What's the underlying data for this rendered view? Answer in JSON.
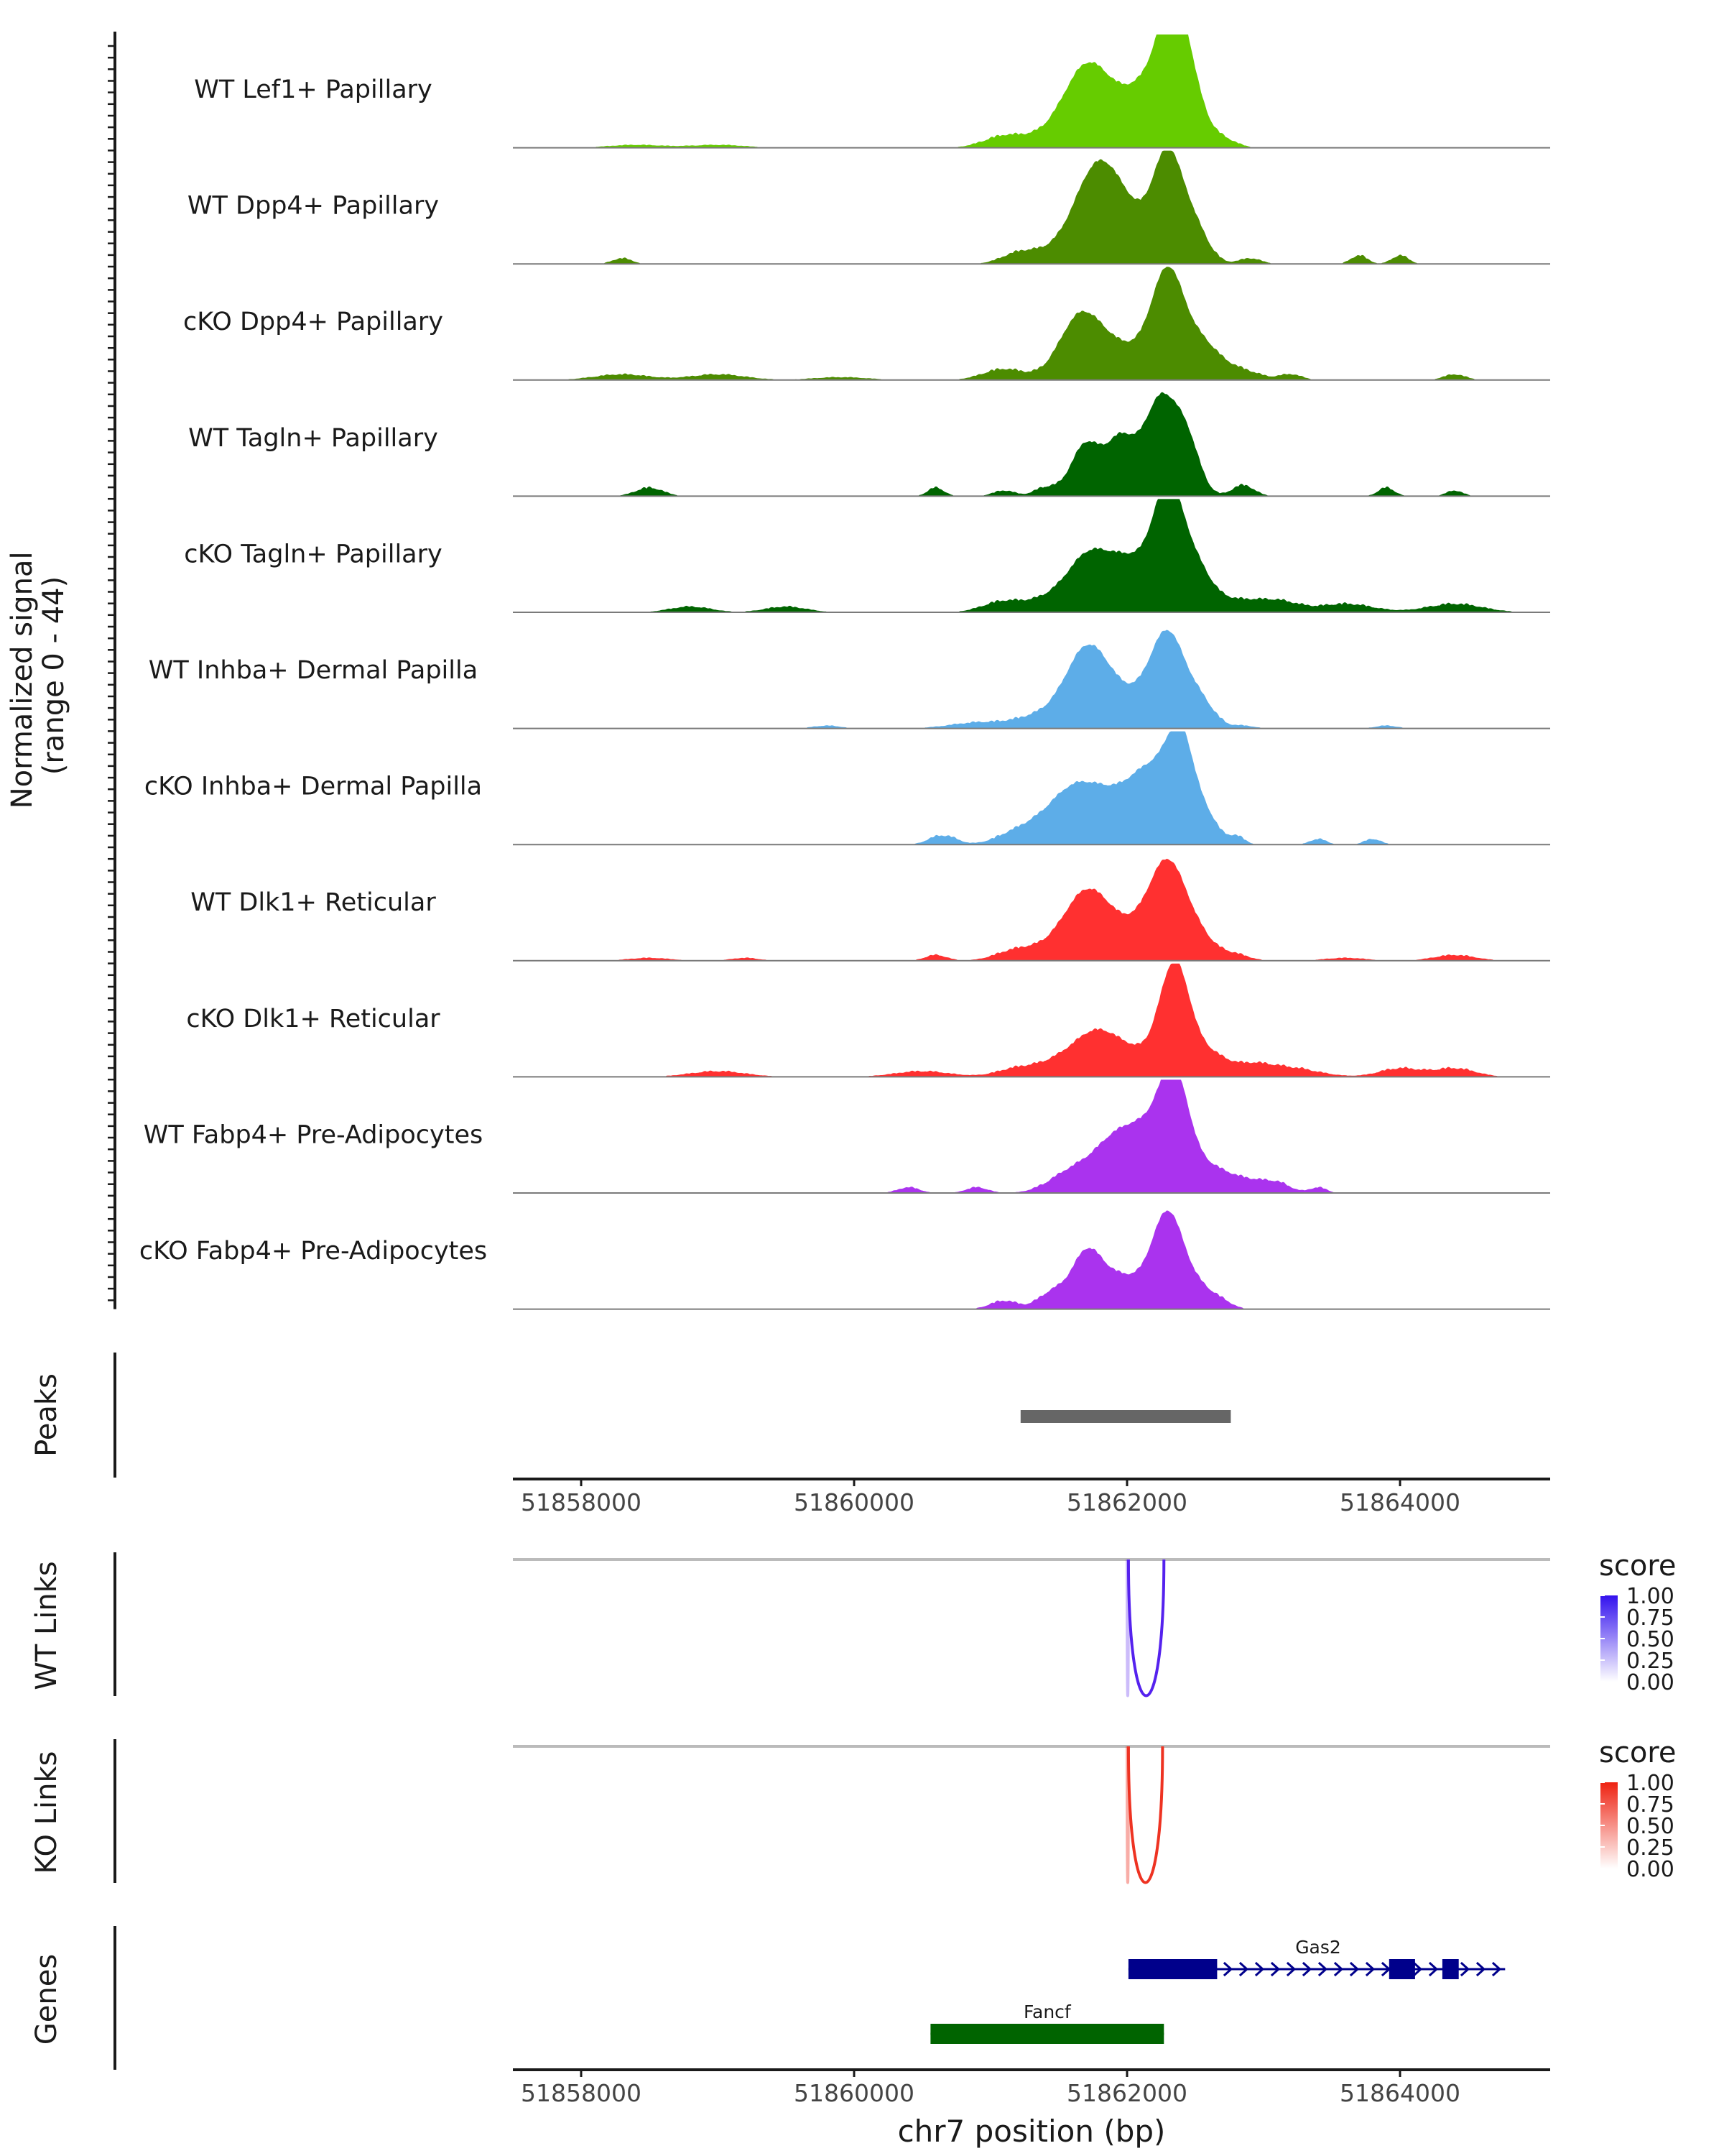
{
  "chart_data": {
    "type": "area",
    "title": "",
    "xlabel": "chr7 position (bp)",
    "xlim": [
      51857500,
      51865100
    ],
    "x_ticks": [
      51858000,
      51860000,
      51862000,
      51864000
    ],
    "x_tick_labels": [
      "51858000",
      "51860000",
      "51862000",
      "51864000"
    ],
    "coverage": {
      "ylabel": "Normalized signal\n(range 0 - 44)",
      "ylabel_lines": [
        "Normalized signal",
        "(range 0 - 44)"
      ],
      "ylim": [
        0,
        44
      ],
      "tracks": [
        {
          "name": "WT Lef1+ Papillary",
          "color": "#66CC00",
          "peaks": [
            [
              51858400,
              1,
              200
            ],
            [
              51859000,
              1,
              200
            ],
            [
              51861100,
              4,
              150
            ],
            [
              51861500,
              5,
              200
            ],
            [
              51861700,
              24,
              160
            ],
            [
              51861950,
              12,
              200
            ],
            [
              51862200,
              18,
              160
            ],
            [
              51862350,
              43,
              110
            ],
            [
              51862500,
              10,
              100
            ],
            [
              51862700,
              3,
              100
            ]
          ]
        },
        {
          "name": "WT Dpp4+ Papillary",
          "color": "#4C8C00",
          "peaks": [
            [
              51858300,
              2,
              70
            ],
            [
              51861200,
              3,
              120
            ],
            [
              51861500,
              5,
              200
            ],
            [
              51861750,
              24,
              150
            ],
            [
              51861950,
              22,
              180
            ],
            [
              51862300,
              40,
              110
            ],
            [
              51862500,
              12,
              100
            ],
            [
              51862900,
              2,
              80
            ],
            [
              51863700,
              3,
              60
            ],
            [
              51864000,
              3,
              60
            ]
          ]
        },
        {
          "name": "cKO Dpp4+ Papillary",
          "color": "#4C8C00",
          "peaks": [
            [
              51858300,
              2,
              200
            ],
            [
              51859000,
              2,
              200
            ],
            [
              51859900,
              1,
              200
            ],
            [
              51861100,
              4,
              150
            ],
            [
              51861650,
              22,
              150
            ],
            [
              51861950,
              12,
              200
            ],
            [
              51862300,
              40,
              120
            ],
            [
              51862550,
              12,
              120
            ],
            [
              51862800,
              4,
              150
            ],
            [
              51863200,
              2,
              80
            ],
            [
              51864400,
              2,
              80
            ]
          ]
        },
        {
          "name": "WT Tagln+ Papillary",
          "color": "#006400",
          "peaks": [
            [
              51858500,
              3,
              100
            ],
            [
              51860600,
              3,
              60
            ],
            [
              51861100,
              2,
              80
            ],
            [
              51861400,
              3,
              80
            ],
            [
              51861700,
              20,
              110
            ],
            [
              51861950,
              20,
              100
            ],
            [
              51862250,
              38,
              130
            ],
            [
              51862450,
              15,
              90
            ],
            [
              51862850,
              4,
              80
            ],
            [
              51863900,
              3,
              60
            ],
            [
              51864400,
              2,
              60
            ]
          ]
        },
        {
          "name": "cKO Tagln+ Papillary",
          "color": "#006400",
          "peaks": [
            [
              51858800,
              2,
              150
            ],
            [
              51859500,
              2,
              150
            ],
            [
              51861100,
              4,
              150
            ],
            [
              51861450,
              5,
              150
            ],
            [
              51861700,
              17,
              140
            ],
            [
              51862000,
              20,
              180
            ],
            [
              51862300,
              42,
              110
            ],
            [
              51862500,
              16,
              120
            ],
            [
              51862800,
              4,
              150
            ],
            [
              51863100,
              4,
              150
            ],
            [
              51863600,
              3,
              200
            ],
            [
              51864400,
              3,
              200
            ]
          ]
        },
        {
          "name": "WT Inhba+ Dermal Papilla",
          "color": "#5DADE8",
          "peaks": [
            [
              51859800,
              1,
              100
            ],
            [
              51860900,
              2,
              200
            ],
            [
              51861400,
              5,
              200
            ],
            [
              51861700,
              25,
              150
            ],
            [
              51861950,
              12,
              200
            ],
            [
              51862300,
              35,
              130
            ],
            [
              51862550,
              8,
              100
            ],
            [
              51862850,
              1,
              80
            ],
            [
              51863900,
              1,
              80
            ]
          ]
        },
        {
          "name": "cKO Inhba+ Dermal Papilla",
          "color": "#5DADE8",
          "peaks": [
            [
              51860600,
              2,
              80
            ],
            [
              51860700,
              2,
              80
            ],
            [
              51861200,
              4,
              150
            ],
            [
              51861600,
              20,
              200
            ],
            [
              51861950,
              14,
              200
            ],
            [
              51862200,
              22,
              150
            ],
            [
              51862400,
              36,
              100
            ],
            [
              51862600,
              8,
              80
            ],
            [
              51862800,
              3,
              60
            ],
            [
              51863400,
              2,
              60
            ],
            [
              51863800,
              2,
              60
            ]
          ]
        },
        {
          "name": "WT Dlk1+ Reticular",
          "color": "#FF3030",
          "peaks": [
            [
              51858500,
              1,
              150
            ],
            [
              51859200,
              1,
              100
            ],
            [
              51860600,
              2,
              80
            ],
            [
              51861200,
              4,
              150
            ],
            [
              51861500,
              5,
              150
            ],
            [
              51861700,
              20,
              150
            ],
            [
              51861950,
              12,
              200
            ],
            [
              51862300,
              36,
              140
            ],
            [
              51862550,
              6,
              120
            ],
            [
              51862800,
              2,
              100
            ],
            [
              51863600,
              1,
              150
            ],
            [
              51864400,
              2,
              150
            ]
          ]
        },
        {
          "name": "cKO Dlk1+ Reticular",
          "color": "#FF3030",
          "peaks": [
            [
              51859000,
              2,
              200
            ],
            [
              51860500,
              2,
              200
            ],
            [
              51861200,
              3,
              150
            ],
            [
              51861500,
              5,
              150
            ],
            [
              51861750,
              12,
              150
            ],
            [
              51862000,
              10,
              200
            ],
            [
              51862350,
              42,
              110
            ],
            [
              51862600,
              8,
              120
            ],
            [
              51862900,
              4,
              150
            ],
            [
              51863200,
              3,
              200
            ],
            [
              51864000,
              3,
              150
            ],
            [
              51864400,
              3,
              150
            ]
          ]
        },
        {
          "name": "WT Fabp4+ Pre-Adipocytes",
          "color": "#AA33EE",
          "peaks": [
            [
              51860400,
              2,
              80
            ],
            [
              51860900,
              2,
              80
            ],
            [
              51861600,
              8,
              160
            ],
            [
              51861900,
              17,
              150
            ],
            [
              51862150,
              20,
              150
            ],
            [
              51862350,
              40,
              110
            ],
            [
              51862600,
              8,
              120
            ],
            [
              51862850,
              5,
              150
            ],
            [
              51863100,
              3,
              100
            ],
            [
              51863400,
              2,
              60
            ]
          ]
        },
        {
          "name": "cKO Fabp4+ Pre-Adipocytes",
          "color": "#AA33EE",
          "peaks": [
            [
              51861100,
              3,
              100
            ],
            [
              51861450,
              6,
              100
            ],
            [
              51861700,
              20,
              110
            ],
            [
              51861950,
              12,
              150
            ],
            [
              51862300,
              37,
              120
            ],
            [
              51862550,
              6,
              100
            ],
            [
              51862700,
              2,
              80
            ]
          ]
        }
      ]
    },
    "peaks_track": {
      "label": "Peaks",
      "color": "#666666",
      "regions": [
        {
          "start": 51861220,
          "end": 51862760
        }
      ]
    },
    "links_tracks": [
      {
        "label": "WT Links",
        "color": "#5522EE",
        "links": [
          {
            "start": 51862010,
            "end": 51862270,
            "score": 1.0
          },
          {
            "start": 51862000,
            "end": 51862010,
            "score": 0.3
          }
        ],
        "legend": {
          "title": "score",
          "ticks": [
            "1.00",
            "0.75",
            "0.50",
            "0.25",
            "0.00"
          ],
          "low_color": "#FFFFFF",
          "high_color": "#3311EE"
        }
      },
      {
        "label": "KO Links",
        "color": "#EE3322",
        "links": [
          {
            "start": 51862010,
            "end": 51862260,
            "score": 1.0
          },
          {
            "start": 51862000,
            "end": 51862010,
            "score": 0.4
          }
        ],
        "legend": {
          "title": "score",
          "ticks": [
            "1.00",
            "0.75",
            "0.50",
            "0.25",
            "0.00"
          ],
          "low_color": "#FFFFFF",
          "high_color": "#EE2211"
        }
      }
    ],
    "genes_track": {
      "label": "Genes",
      "genes": [
        {
          "name": "Gas2",
          "start": 51862010,
          "end": 51864770,
          "strand": "+",
          "color": "#00008B",
          "exons": [
            [
              51862010,
              51862660
            ],
            [
              51863920,
              51864110
            ],
            [
              51864310,
              51864430
            ]
          ]
        },
        {
          "name": "Fancf",
          "start": 51860560,
          "end": 51862270,
          "strand": "-",
          "color": "#006400",
          "exons": [
            [
              51860560,
              51862270
            ]
          ]
        }
      ]
    }
  }
}
